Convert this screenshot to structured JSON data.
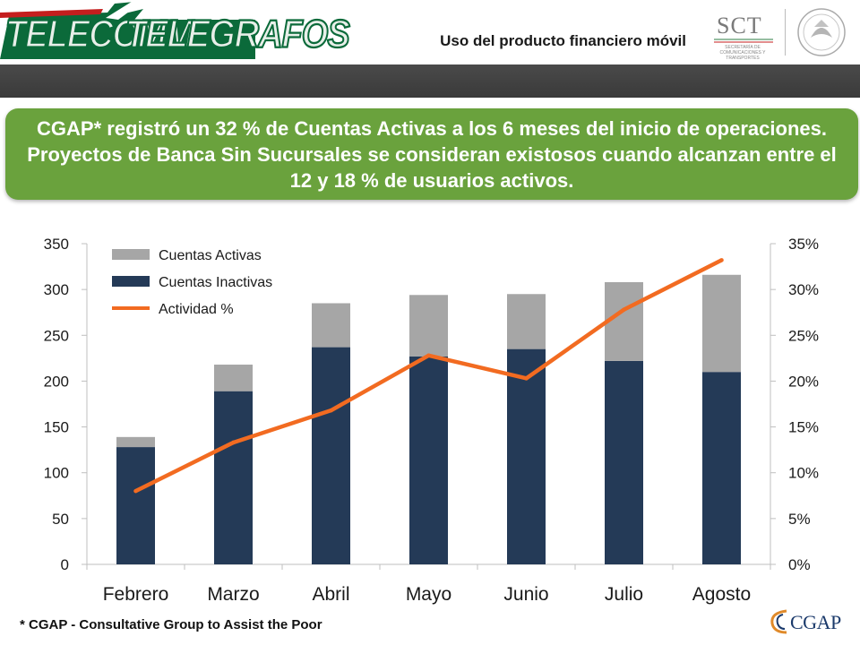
{
  "header": {
    "logo_left": "TELECOMM",
    "logo_right": "TELEGRAFOS",
    "document_title": "Uso del producto financiero móvil",
    "sct_label": "SCT",
    "sct_subtitle": "SECRETARÍA DE COMUNICACIONES Y TRANSPORTES"
  },
  "callout": {
    "text": "CGAP* registró un 32 % de Cuentas Activas a los 6 meses del inicio de operaciones. Proyectos de Banca Sin Sucursales se consideran existosos cuando alcanzan entre el 12 y 18 % de usuarios activos."
  },
  "footer": {
    "footnote": "* CGAP - Consultative Group to Assist the Poor",
    "logo_text": "CGAP"
  },
  "colors": {
    "inactive": "#243a57",
    "active": "#a6a6a6",
    "line": "#f26b21",
    "callout": "#6aa23d"
  },
  "chart_data": {
    "type": "bar",
    "stacked": true,
    "categories": [
      "Febrero",
      "Marzo",
      "Abril",
      "Mayo",
      "Junio",
      "Julio",
      "Agosto"
    ],
    "series": [
      {
        "name": "Cuentas Inactivas",
        "axis": "left",
        "values": [
          128,
          189,
          237,
          227,
          235,
          222,
          210
        ]
      },
      {
        "name": "Cuentas Activas",
        "axis": "left",
        "values": [
          11,
          29,
          48,
          67,
          60,
          86,
          106
        ]
      },
      {
        "name": "Actividad %",
        "axis": "right",
        "type": "line",
        "values": [
          8,
          13.3,
          16.8,
          22.8,
          20.3,
          27.8,
          33.2
        ]
      }
    ],
    "y_left": {
      "min": 0,
      "max": 350,
      "ticks": [
        "0",
        "50",
        "100",
        "150",
        "200",
        "250",
        "300",
        "350"
      ]
    },
    "y_right": {
      "min": 0,
      "max": 35,
      "ticks": [
        "0%",
        "5%",
        "10%",
        "15%",
        "20%",
        "25%",
        "30%",
        "35%"
      ]
    },
    "legend_position": "top-left",
    "grid": false
  }
}
